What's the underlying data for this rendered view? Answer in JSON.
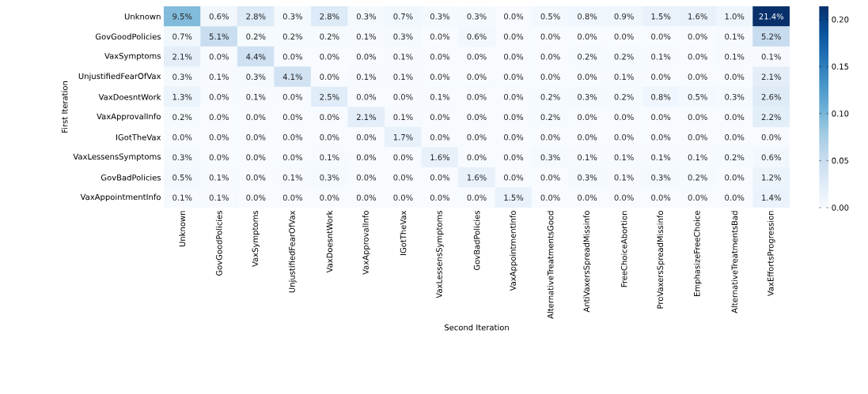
{
  "chart_data": {
    "type": "heatmap",
    "xlabel": "Second Iteration",
    "ylabel": "First Iteration",
    "categories": [
      "Unknown",
      "GovGoodPolicies",
      "VaxSymptoms",
      "UnjustifiedFearOfVax",
      "VaxDoesntWork",
      "VaxApprovalInfo",
      "IGotTheVax",
      "VaxLessensSymptoms",
      "GovBadPolicies",
      "VaxAppointmentInfo",
      "AlternativeTreatmentsGood",
      "AntiVaxersSpreadMissinfo",
      "FreeChoiceAbortion",
      "ProVaxersSpreadMissinfo",
      "EmphasizeFreeChoice",
      "AlternativeTreatmentsBad",
      "VaxEffortsProgression"
    ],
    "y_categories": [
      "Unknown",
      "GovGoodPolicies",
      "VaxSymptoms",
      "UnjustifiedFearOfVax",
      "VaxDoesntWork",
      "VaxApprovalInfo",
      "IGotTheVax",
      "VaxLessensSymptoms",
      "GovBadPolicies",
      "VaxAppointmentInfo"
    ],
    "cells": [
      [
        0.095,
        0.006,
        0.028,
        0.003,
        0.028,
        0.003,
        0.007,
        0.003,
        0.003,
        0.0,
        0.005,
        0.008,
        0.009,
        0.015,
        0.016,
        0.01,
        0.214
      ],
      [
        0.007,
        0.051,
        0.002,
        0.002,
        0.002,
        0.001,
        0.003,
        0.0,
        0.006,
        0.0,
        0.0,
        0.0,
        0.0,
        0.0,
        0.0,
        0.001,
        0.052
      ],
      [
        0.021,
        0.0,
        0.044,
        0.0,
        0.0,
        0.0,
        0.001,
        0.0,
        0.0,
        0.0,
        0.0,
        0.002,
        0.002,
        0.001,
        0.0,
        0.001,
        0.001
      ],
      [
        0.003,
        0.001,
        0.003,
        0.041,
        0.0,
        0.001,
        0.001,
        0.0,
        0.0,
        0.0,
        0.0,
        0.0,
        0.001,
        0.0,
        0.0,
        0.0,
        0.021
      ],
      [
        0.013,
        0.0,
        0.001,
        0.0,
        0.025,
        0.0,
        0.0,
        0.001,
        0.0,
        0.0,
        0.002,
        0.003,
        0.002,
        0.008,
        0.005,
        0.003,
        0.026
      ],
      [
        0.002,
        0.0,
        0.0,
        0.0,
        0.0,
        0.021,
        0.001,
        0.0,
        0.0,
        0.0,
        0.002,
        0.0,
        0.0,
        0.0,
        0.0,
        0.0,
        0.022
      ],
      [
        0.0,
        0.0,
        0.0,
        0.0,
        0.0,
        0.0,
        0.017,
        0.0,
        0.0,
        0.0,
        0.0,
        0.0,
        0.0,
        0.0,
        0.0,
        0.0,
        0.0
      ],
      [
        0.003,
        0.0,
        0.0,
        0.0,
        0.001,
        0.0,
        0.0,
        0.016,
        0.0,
        0.0,
        0.003,
        0.001,
        0.001,
        0.001,
        0.001,
        0.002,
        0.006
      ],
      [
        0.005,
        0.001,
        0.0,
        0.001,
        0.003,
        0.0,
        0.0,
        0.0,
        0.016,
        0.0,
        0.0,
        0.003,
        0.001,
        0.003,
        0.002,
        0.0,
        0.012
      ],
      [
        0.001,
        0.001,
        0.0,
        0.0,
        0.0,
        0.0,
        0.0,
        0.0,
        0.0,
        0.015,
        0.0,
        0.0,
        0.0,
        0.0,
        0.0,
        0.0,
        0.014
      ]
    ],
    "cell_labels": [
      [
        "9.5%",
        "0.6%",
        "2.8%",
        "0.3%",
        "2.8%",
        "0.3%",
        "0.7%",
        "0.3%",
        "0.3%",
        "0.0%",
        "0.5%",
        "0.8%",
        "0.9%",
        "1.5%",
        "1.6%",
        "1.0%",
        "21.4%"
      ],
      [
        "0.7%",
        "5.1%",
        "0.2%",
        "0.2%",
        "0.2%",
        "0.1%",
        "0.3%",
        "0.0%",
        "0.6%",
        "0.0%",
        "0.0%",
        "0.0%",
        "0.0%",
        "0.0%",
        "0.0%",
        "0.1%",
        "5.2%"
      ],
      [
        "2.1%",
        "0.0%",
        "4.4%",
        "0.0%",
        "0.0%",
        "0.0%",
        "0.1%",
        "0.0%",
        "0.0%",
        "0.0%",
        "0.0%",
        "0.2%",
        "0.2%",
        "0.1%",
        "0.0%",
        "0.1%",
        "0.1%"
      ],
      [
        "0.3%",
        "0.1%",
        "0.3%",
        "4.1%",
        "0.0%",
        "0.1%",
        "0.1%",
        "0.0%",
        "0.0%",
        "0.0%",
        "0.0%",
        "0.0%",
        "0.1%",
        "0.0%",
        "0.0%",
        "0.0%",
        "2.1%"
      ],
      [
        "1.3%",
        "0.0%",
        "0.1%",
        "0.0%",
        "2.5%",
        "0.0%",
        "0.0%",
        "0.1%",
        "0.0%",
        "0.0%",
        "0.2%",
        "0.3%",
        "0.2%",
        "0.8%",
        "0.5%",
        "0.3%",
        "2.6%"
      ],
      [
        "0.2%",
        "0.0%",
        "0.0%",
        "0.0%",
        "0.0%",
        "2.1%",
        "0.1%",
        "0.0%",
        "0.0%",
        "0.0%",
        "0.2%",
        "0.0%",
        "0.0%",
        "0.0%",
        "0.0%",
        "0.0%",
        "2.2%"
      ],
      [
        "0.0%",
        "0.0%",
        "0.0%",
        "0.0%",
        "0.0%",
        "0.0%",
        "1.7%",
        "0.0%",
        "0.0%",
        "0.0%",
        "0.0%",
        "0.0%",
        "0.0%",
        "0.0%",
        "0.0%",
        "0.0%",
        "0.0%"
      ],
      [
        "0.3%",
        "0.0%",
        "0.0%",
        "0.0%",
        "0.1%",
        "0.0%",
        "0.0%",
        "1.6%",
        "0.0%",
        "0.0%",
        "0.3%",
        "0.1%",
        "0.1%",
        "0.1%",
        "0.1%",
        "0.2%",
        "0.6%"
      ],
      [
        "0.5%",
        "0.1%",
        "0.0%",
        "0.1%",
        "0.3%",
        "0.0%",
        "0.0%",
        "0.0%",
        "1.6%",
        "0.0%",
        "0.0%",
        "0.3%",
        "0.1%",
        "0.3%",
        "0.2%",
        "0.0%",
        "1.2%"
      ],
      [
        "0.1%",
        "0.1%",
        "0.0%",
        "0.0%",
        "0.0%",
        "0.0%",
        "0.0%",
        "0.0%",
        "0.0%",
        "1.5%",
        "0.0%",
        "0.0%",
        "0.0%",
        "0.0%",
        "0.0%",
        "0.0%",
        "1.4%"
      ]
    ],
    "clim": [
      0,
      0.214
    ],
    "cticks": [
      {
        "value": 0,
        "label": "0.00"
      },
      {
        "value": 0.05,
        "label": "0.05"
      },
      {
        "value": 0.1,
        "label": "0.10"
      },
      {
        "value": 0.15,
        "label": "0.15"
      },
      {
        "value": 0.2,
        "label": "0.20"
      }
    ]
  }
}
